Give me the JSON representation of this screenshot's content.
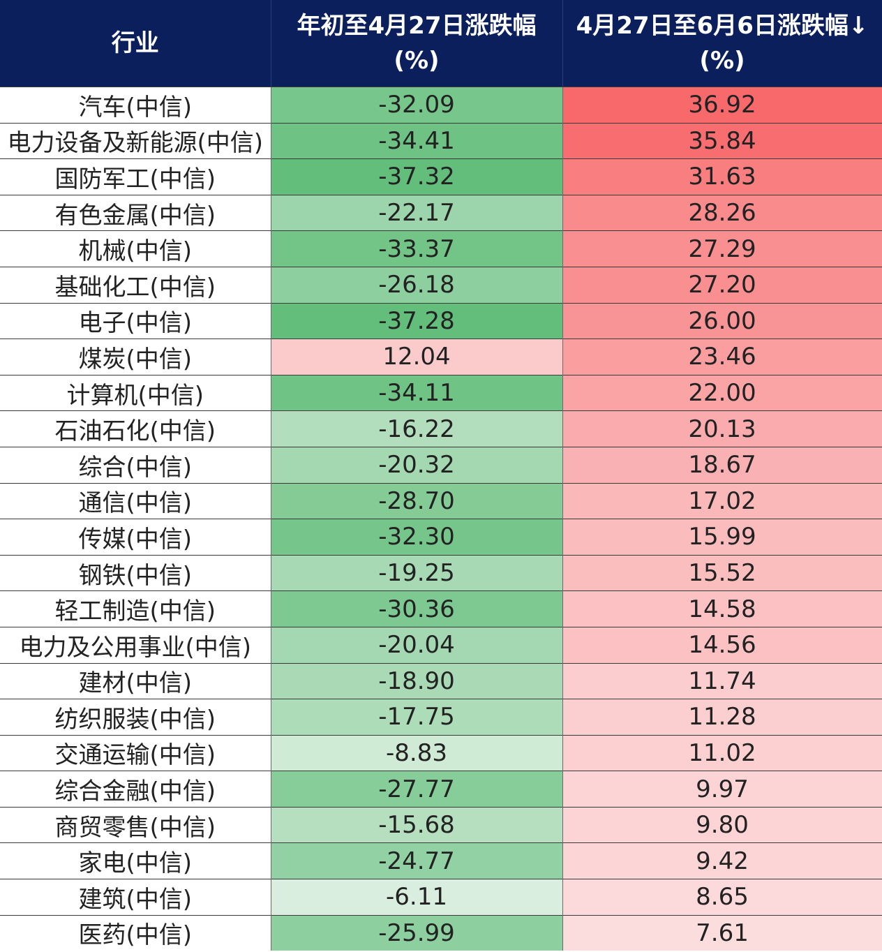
{
  "table": {
    "header": [
      [
        "行业"
      ],
      [
        "年初至4月27日涨跌幅",
        "(%)"
      ],
      [
        "4月27日至6月6日涨跌幅↓",
        "(%)"
      ]
    ],
    "rows": [
      [
        "汽车(中信)",
        "-32.09",
        "36.92"
      ],
      [
        "电力设备及新能源(中信)",
        "-34.41",
        "35.84"
      ],
      [
        "国防军工(中信)",
        "-37.32",
        "31.63"
      ],
      [
        "有色金属(中信)",
        "-22.17",
        "28.26"
      ],
      [
        "机械(中信)",
        "-33.37",
        "27.29"
      ],
      [
        "基础化工(中信)",
        "-26.18",
        "27.20"
      ],
      [
        "电子(中信)",
        "-37.28",
        "26.00"
      ],
      [
        "煤炭(中信)",
        "12.04",
        "23.46"
      ],
      [
        "计算机(中信)",
        "-34.11",
        "22.00"
      ],
      [
        "石油石化(中信)",
        "-16.22",
        "20.13"
      ],
      [
        "综合(中信)",
        "-20.32",
        "18.67"
      ],
      [
        "通信(中信)",
        "-28.70",
        "17.02"
      ],
      [
        "传媒(中信)",
        "-32.30",
        "15.99"
      ],
      [
        "钢铁(中信)",
        "-19.25",
        "15.52"
      ],
      [
        "轻工制造(中信)",
        "-30.36",
        "14.58"
      ],
      [
        "电力及公用事业(中信)",
        "-20.04",
        "14.56"
      ],
      [
        "建材(中信)",
        "-18.90",
        "11.74"
      ],
      [
        "纺织服装(中信)",
        "-17.75",
        "11.28"
      ],
      [
        "交通运输(中信)",
        "-8.83",
        "11.02"
      ],
      [
        "综合金融(中信)",
        "-27.77",
        "9.97"
      ],
      [
        "商贸零售(中信)",
        "-15.68",
        "9.80"
      ],
      [
        "家电(中信)",
        "-24.77",
        "9.42"
      ],
      [
        "建筑(中信)",
        "-6.11",
        "8.65"
      ],
      [
        "医药(中信)",
        "-25.99",
        "7.61"
      ]
    ]
  }
}
